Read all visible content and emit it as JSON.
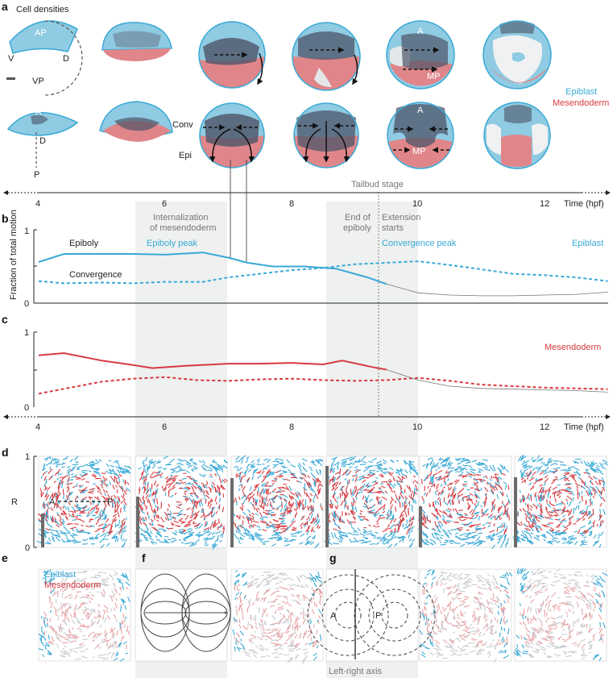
{
  "panels": {
    "a": "a",
    "b": "b",
    "c": "c",
    "d": "d",
    "e": "e",
    "f": "f",
    "g": "g"
  },
  "panel_a": {
    "title": "Cell densities",
    "labels": {
      "AP": "AP",
      "V": "V",
      "D": "D",
      "VP": "VP",
      "A": "A",
      "D2": "D",
      "P": "P",
      "A3": "A",
      "MP": "MP",
      "A4": "A",
      "MP2": "MP",
      "Conv": "Conv",
      "Epi": "Epi"
    },
    "legend": {
      "epiblast": "Epiblast",
      "mesendoderm": "Mesendoderm"
    }
  },
  "time_axis": {
    "label": "Time (hpf)",
    "ticks": [
      "4",
      "6",
      "8",
      "10",
      "12"
    ],
    "tailbud": "Tailbud stage"
  },
  "colors": {
    "epiblast": "#39a9d6",
    "mesendoderm": "#d73a40",
    "shade": "#eef1f0"
  },
  "panel_b": {
    "ylabel": "Fraction of total motion",
    "yticks": [
      "0",
      "1"
    ],
    "annotations": {
      "internalization_1": "Internalization",
      "internalization_2": "of mesendoderm",
      "end_epiboly_1": "End of",
      "end_epiboly_2": "epiboly",
      "extension_1": "Extension",
      "extension_2": "starts",
      "epiboly": "Epiboly",
      "epiboly_peak": "Epiboly peak",
      "convergence": "Convergence",
      "convergence_peak": "Convergence peak",
      "series": "Epiblast"
    }
  },
  "panel_c": {
    "yticks": [
      "0",
      "1"
    ],
    "series": "Mesendoderm"
  },
  "panel_d": {
    "ylabel": "R",
    "yticks": [
      "0",
      "1"
    ],
    "axisA": "A",
    "axisP": "P"
  },
  "panel_e": {
    "legend_epiblast": "Epiblast",
    "legend_mesendoderm": "Mesendoderm"
  },
  "panel_g": {
    "A": "A",
    "P": "P",
    "axis": "Left-right axis"
  },
  "chart_data": [
    {
      "type": "line",
      "panel": "b",
      "xlabel": "Time (hpf)",
      "ylabel": "Fraction of total motion",
      "xlim": [
        4,
        13
      ],
      "ylim": [
        0,
        1
      ],
      "series": [
        {
          "name": "Epiboly",
          "style": "solid",
          "x": [
            4,
            4.4,
            5,
            5.5,
            6,
            6.6,
            7,
            7.3,
            7.7,
            8.2,
            8.7,
            9.2,
            9.5
          ],
          "y": [
            0.56,
            0.67,
            0.67,
            0.67,
            0.66,
            0.69,
            0.62,
            0.55,
            0.5,
            0.5,
            0.47,
            0.35,
            0.26
          ]
        },
        {
          "name": "Convergence",
          "style": "dashed",
          "x": [
            4,
            4.4,
            5,
            5.5,
            6,
            6.6,
            7,
            7.5,
            8,
            8.5,
            9,
            9.5,
            10,
            10.5,
            11,
            11.5,
            12,
            12.5,
            13
          ],
          "y": [
            0.3,
            0.27,
            0.28,
            0.27,
            0.29,
            0.29,
            0.35,
            0.4,
            0.45,
            0.48,
            0.53,
            0.55,
            0.57,
            0.52,
            0.46,
            0.4,
            0.38,
            0.35,
            0.3
          ]
        },
        {
          "name": "Epiblast",
          "style": "thin",
          "x": [
            9.5,
            10,
            10.5,
            11,
            11.5,
            12,
            12.5,
            13
          ],
          "y": [
            0.26,
            0.14,
            0.11,
            0.1,
            0.1,
            0.11,
            0.12,
            0.15
          ]
        }
      ]
    },
    {
      "type": "line",
      "panel": "c",
      "xlabel": "Time (hpf)",
      "xlim": [
        4,
        13
      ],
      "ylim": [
        0,
        1
      ],
      "series": [
        {
          "name": "Epiboly",
          "style": "solid",
          "x": [
            4,
            4.4,
            5,
            5.5,
            5.8,
            6.3,
            7,
            7.5,
            8,
            8.5,
            8.8,
            9.3,
            9.5
          ],
          "y": [
            0.69,
            0.72,
            0.62,
            0.56,
            0.52,
            0.55,
            0.58,
            0.58,
            0.59,
            0.57,
            0.62,
            0.53,
            0.5
          ]
        },
        {
          "name": "Convergence",
          "style": "dashed",
          "x": [
            4,
            4.5,
            5,
            5.5,
            6,
            6.5,
            7,
            7.5,
            8,
            8.5,
            9,
            9.5,
            10,
            10.5,
            11,
            11.5,
            12,
            12.5,
            13
          ],
          "y": [
            0.18,
            0.26,
            0.34,
            0.38,
            0.4,
            0.36,
            0.35,
            0.37,
            0.38,
            0.36,
            0.35,
            0.36,
            0.39,
            0.35,
            0.3,
            0.28,
            0.26,
            0.25,
            0.24
          ]
        },
        {
          "name": "Mesendoderm",
          "style": "thin",
          "x": [
            9.5,
            10,
            10.5,
            11,
            11.5,
            12,
            12.5,
            13
          ],
          "y": [
            0.5,
            0.36,
            0.28,
            0.25,
            0.24,
            0.23,
            0.22,
            0.2
          ]
        }
      ]
    }
  ]
}
